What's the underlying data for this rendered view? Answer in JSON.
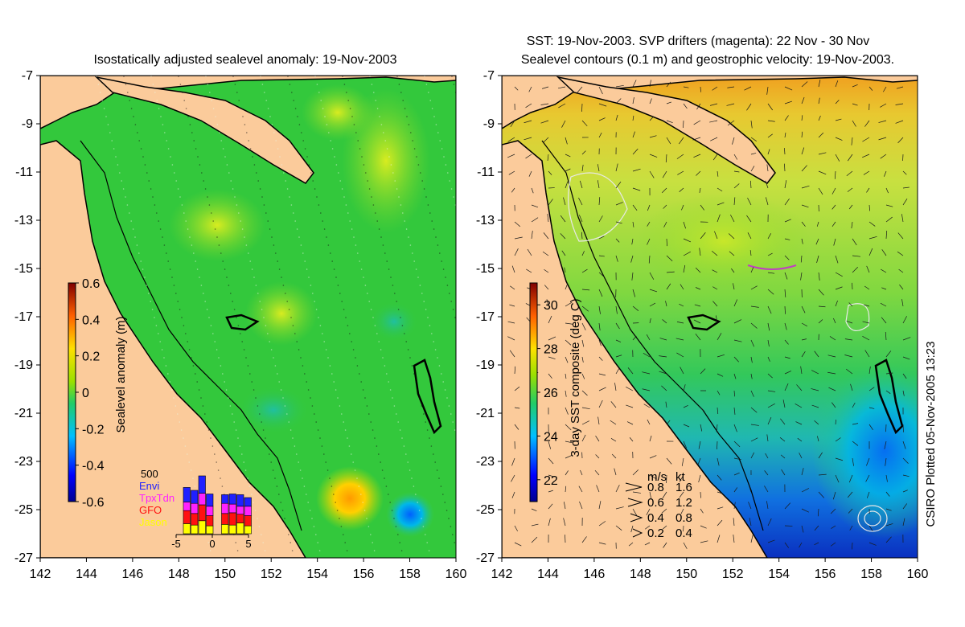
{
  "chart_data": [
    {
      "type": "heatmap",
      "title": "Isostatically adjusted sealevel anomaly: 19-Nov-2003",
      "xlabel": "",
      "ylabel": "",
      "xlim": [
        142,
        160
      ],
      "ylim": [
        -27,
        -7
      ],
      "x_ticks": [
        142,
        144,
        146,
        148,
        150,
        152,
        154,
        156,
        158,
        160
      ],
      "y_ticks": [
        -7,
        -9,
        -11,
        -13,
        -15,
        -17,
        -19,
        -21,
        -23,
        -25,
        -27
      ],
      "colorbar": {
        "label": "Sealevel anomaly (m)",
        "range": [
          -0.6,
          0.6
        ],
        "ticks": [
          0.6,
          0.4,
          0.2,
          0,
          -0.2,
          -0.4,
          -0.6
        ]
      },
      "features": [
        {
          "label": "positive anomaly",
          "lon": 155.7,
          "lat": -24.5,
          "value": 0.3
        },
        {
          "label": "negative anomaly",
          "lon": 158.1,
          "lat": -25.2,
          "value": -0.3
        }
      ],
      "inset": {
        "type": "bar",
        "top_label": "500",
        "legend": [
          "Envi",
          "TpxTdn",
          "GFO",
          "Jason"
        ],
        "legend_colors": [
          "#2020ff",
          "#ff22ff",
          "#ff1111",
          "#ffff00"
        ],
        "x_ticks": [
          -5,
          0,
          5
        ],
        "days": [
          -4,
          -3,
          -2,
          -1,
          0,
          1,
          2,
          3,
          4
        ],
        "series": [
          {
            "name": "Jason",
            "values": [
              70,
              60,
              90,
              55,
              0,
              65,
              60,
              75,
              55
            ]
          },
          {
            "name": "GFO",
            "values": [
              90,
              80,
              110,
              70,
              0,
              75,
              85,
              60,
              70
            ]
          },
          {
            "name": "TpxTdn",
            "values": [
              60,
              70,
              80,
              65,
              0,
              70,
              60,
              55,
              65
            ]
          },
          {
            "name": "Envi",
            "values": [
              100,
              90,
              120,
              85,
              0,
              60,
              70,
              80,
              60
            ]
          }
        ]
      }
    },
    {
      "type": "heatmap",
      "title": "SST: 19-Nov-2003. SVP drifters (magenta): 22 Nov - 30 Nov",
      "subtitle": "Sealevel contours (0.1 m) and geostrophic velocity: 19-Nov-2003.",
      "xlabel": "",
      "ylabel": "",
      "xlim": [
        142,
        160
      ],
      "ylim": [
        -27,
        -7
      ],
      "x_ticks": [
        142,
        144,
        146,
        148,
        150,
        152,
        154,
        156,
        158,
        160
      ],
      "y_ticks": [
        -7,
        -9,
        -11,
        -13,
        -15,
        -17,
        -19,
        -21,
        -23,
        -25,
        -27
      ],
      "colorbar": {
        "label": "3-day SST composite (deg C)",
        "range": [
          21,
          31
        ],
        "ticks": [
          30,
          28,
          26,
          24,
          22
        ]
      },
      "velocity_legend": {
        "header_ms": "m/s",
        "header_kt": "kt",
        "rows": [
          {
            "ms": "0.8",
            "kt": "1.6"
          },
          {
            "ms": "0.6",
            "kt": "1.2"
          },
          {
            "ms": "0.4",
            "kt": "0.8"
          },
          {
            "ms": "0.2",
            "kt": "0.4"
          }
        ]
      },
      "credit": "CSIRO Plotted 05-Nov-2005 13:23"
    }
  ],
  "colors": {
    "land": "#fbcb9b",
    "ocean_mid": "#33c83c",
    "coast": "#000000"
  }
}
